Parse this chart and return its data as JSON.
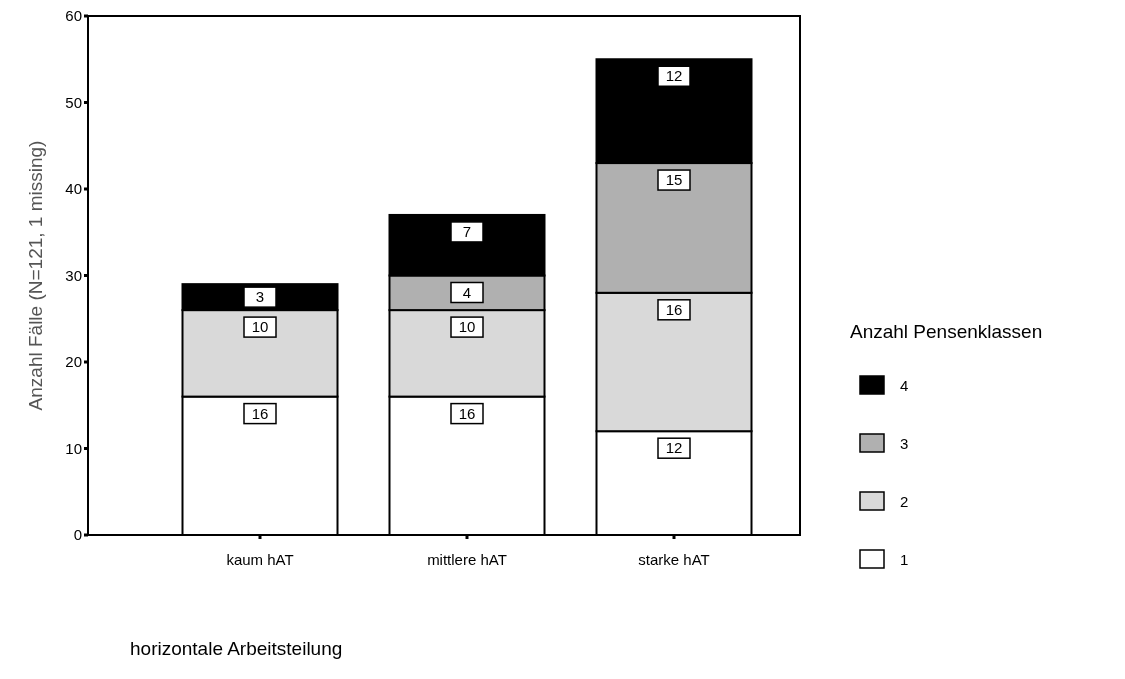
{
  "chart_data": {
    "type": "bar",
    "stacked": true,
    "xlabel": "horizontale Arbeitsteilung",
    "ylabel": "Anzahl Fälle (N=121, 1 missing)",
    "legend_title": "Anzahl Pensenklassen",
    "legend": "right",
    "data_labels": true,
    "grid": false,
    "categories": [
      "kaum hAT",
      "mittlere hAT",
      "starke hAT"
    ],
    "ylim": [
      0,
      60
    ],
    "yticks": [
      0,
      10,
      20,
      30,
      40,
      50,
      60
    ],
    "series": [
      {
        "name": "1",
        "color": "#ffffff",
        "values": [
          16,
          16,
          12
        ]
      },
      {
        "name": "2",
        "color": "#d9d9d9",
        "values": [
          10,
          10,
          16
        ]
      },
      {
        "name": "3",
        "color": "#b0b0b0",
        "values": [
          null,
          4,
          15
        ]
      },
      {
        "name": "4",
        "color": "#000000",
        "values": [
          3,
          7,
          12
        ]
      }
    ]
  }
}
